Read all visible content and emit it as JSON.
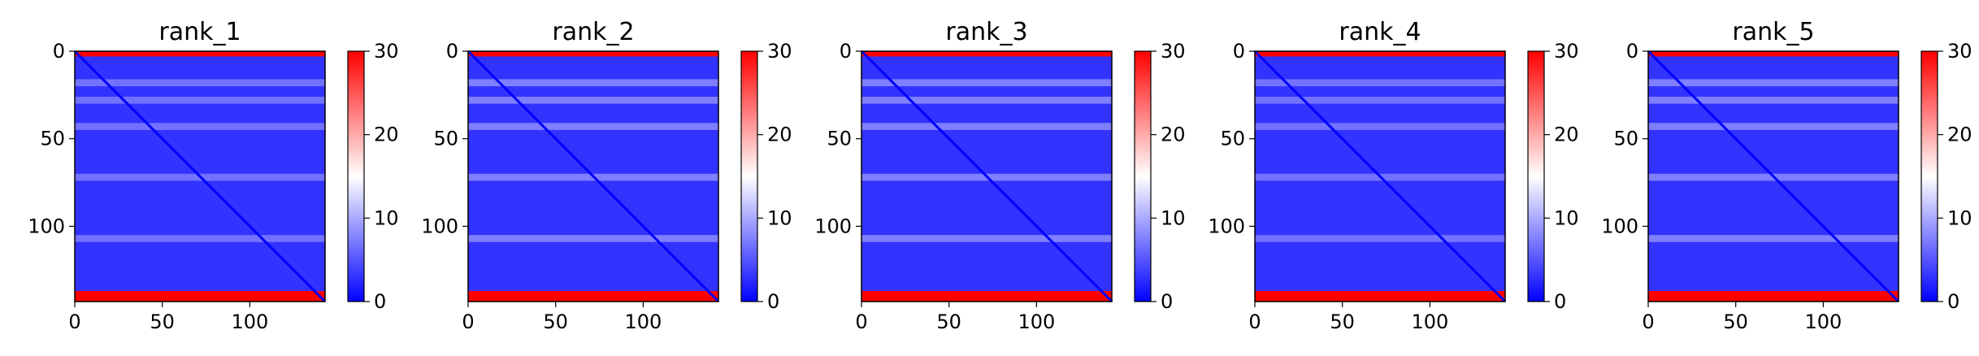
{
  "chart_data": [
    {
      "type": "heatmap",
      "title": "rank_1",
      "x": {
        "ticks": [
          0,
          50,
          100
        ],
        "range": [
          0,
          143
        ]
      },
      "y": {
        "ticks": [
          0,
          50,
          100
        ],
        "range": [
          0,
          143
        ],
        "inverted": true
      },
      "colorbar": {
        "ticks": [
          0,
          10,
          20,
          30
        ],
        "range": [
          0,
          30
        ],
        "colormap": "bwr"
      },
      "pattern": {
        "diagonal_value": 0,
        "background_value": 3,
        "band_rows_value": 8,
        "band_rows": [
          18,
          28,
          43,
          72,
          107
        ],
        "edge_rows_value": 30,
        "edge_rows": [
          [
            0,
            3
          ],
          [
            137,
            143
          ]
        ]
      }
    },
    {
      "type": "heatmap",
      "title": "rank_2",
      "x": {
        "ticks": [
          0,
          50,
          100
        ],
        "range": [
          0,
          143
        ]
      },
      "y": {
        "ticks": [
          0,
          50,
          100
        ],
        "range": [
          0,
          143
        ],
        "inverted": true
      },
      "colorbar": {
        "ticks": [
          0,
          10,
          20,
          30
        ],
        "range": [
          0,
          30
        ],
        "colormap": "bwr"
      },
      "pattern": {
        "diagonal_value": 0,
        "background_value": 3,
        "band_rows_value": 9,
        "band_rows": [
          18,
          28,
          43,
          72,
          107
        ],
        "edge_rows_value": 30,
        "edge_rows": [
          [
            0,
            3
          ],
          [
            137,
            143
          ]
        ]
      }
    },
    {
      "type": "heatmap",
      "title": "rank_3",
      "x": {
        "ticks": [
          0,
          50,
          100
        ],
        "range": [
          0,
          143
        ]
      },
      "y": {
        "ticks": [
          0,
          50,
          100
        ],
        "range": [
          0,
          143
        ],
        "inverted": true
      },
      "colorbar": {
        "ticks": [
          0,
          10,
          20,
          30
        ],
        "range": [
          0,
          30
        ],
        "colormap": "bwr"
      },
      "pattern": {
        "diagonal_value": 0,
        "background_value": 3,
        "band_rows_value": 9,
        "band_rows": [
          18,
          28,
          43,
          72,
          107
        ],
        "edge_rows_value": 30,
        "edge_rows": [
          [
            0,
            3
          ],
          [
            137,
            143
          ]
        ]
      }
    },
    {
      "type": "heatmap",
      "title": "rank_4",
      "x": {
        "ticks": [
          0,
          50,
          100
        ],
        "range": [
          0,
          143
        ]
      },
      "y": {
        "ticks": [
          0,
          50,
          100
        ],
        "range": [
          0,
          143
        ],
        "inverted": true
      },
      "colorbar": {
        "ticks": [
          0,
          10,
          20,
          30
        ],
        "range": [
          0,
          30
        ],
        "colormap": "bwr"
      },
      "pattern": {
        "diagonal_value": 0,
        "background_value": 3,
        "band_rows_value": 8,
        "band_rows": [
          18,
          28,
          43,
          72,
          107
        ],
        "edge_rows_value": 30,
        "edge_rows": [
          [
            0,
            3
          ],
          [
            137,
            143
          ]
        ]
      }
    },
    {
      "type": "heatmap",
      "title": "rank_5",
      "x": {
        "ticks": [
          0,
          50,
          100
        ],
        "range": [
          0,
          143
        ]
      },
      "y": {
        "ticks": [
          0,
          50,
          100
        ],
        "range": [
          0,
          143
        ],
        "inverted": true
      },
      "colorbar": {
        "ticks": [
          0,
          10,
          20,
          30
        ],
        "range": [
          0,
          30
        ],
        "colormap": "bwr"
      },
      "pattern": {
        "diagonal_value": 0,
        "background_value": 3,
        "band_rows_value": 9,
        "band_rows": [
          18,
          28,
          43,
          72,
          107
        ],
        "edge_rows_value": 30,
        "edge_rows": [
          [
            0,
            3
          ],
          [
            137,
            143
          ]
        ]
      }
    }
  ]
}
